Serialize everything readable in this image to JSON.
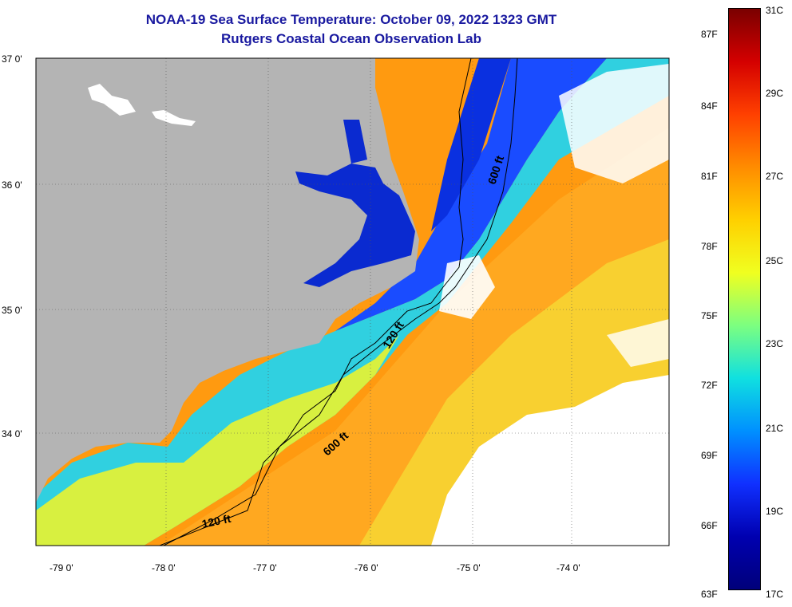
{
  "title": {
    "line1": "NOAA-19 Sea Surface Temperature:  October 09, 2022 1323 GMT",
    "line2": "Rutgers Coastal Ocean Observation Lab"
  },
  "axes": {
    "lat_labels": [
      "37 0'",
      "36 0'",
      "35 0'",
      "34 0'"
    ],
    "lon_labels": [
      "-79 0'",
      "-78 0'",
      "-77 0'",
      "-76 0'",
      "-75 0'",
      "-74 0'"
    ]
  },
  "contours": {
    "label_600a": "600 ft",
    "label_600b": "600 ft",
    "label_120a": "120 ft",
    "label_120b": "120 ft"
  },
  "colorbar": {
    "fahrenheit": [
      "87F",
      "84F",
      "81F",
      "78F",
      "75F",
      "72F",
      "69F",
      "66F",
      "63F"
    ],
    "celsius": [
      "31C",
      "29C",
      "27C",
      "25C",
      "23C",
      "21C",
      "19C",
      "17C"
    ],
    "colors": [
      "#7a0000",
      "#d40000",
      "#ff4000",
      "#ff8c00",
      "#ffd000",
      "#f0ff20",
      "#7cff80",
      "#10e0e0",
      "#0090ff",
      "#1030ff",
      "#0000b0",
      "#00007a"
    ]
  },
  "colors": {
    "land": "#b4b4b4",
    "cloud": "#ffffff",
    "title": "#1a1aa0"
  }
}
